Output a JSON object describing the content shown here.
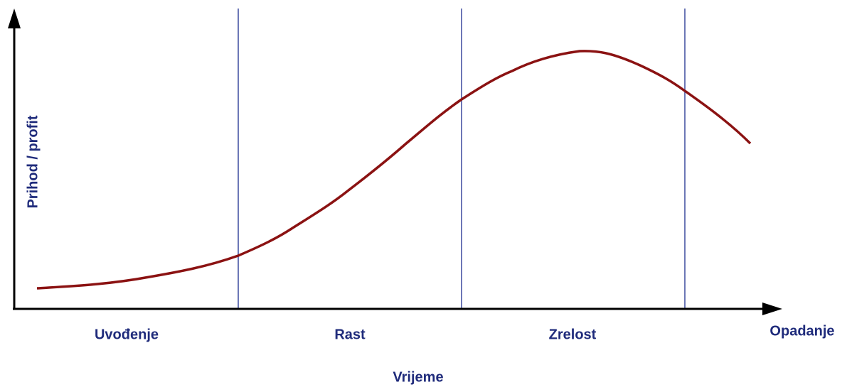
{
  "axes": {
    "y_label": "Prihod / profit",
    "x_label": "Vrijeme"
  },
  "stages": [
    "Uvođenje",
    "Rast",
    "Zrelost",
    "Opadanje"
  ]
}
